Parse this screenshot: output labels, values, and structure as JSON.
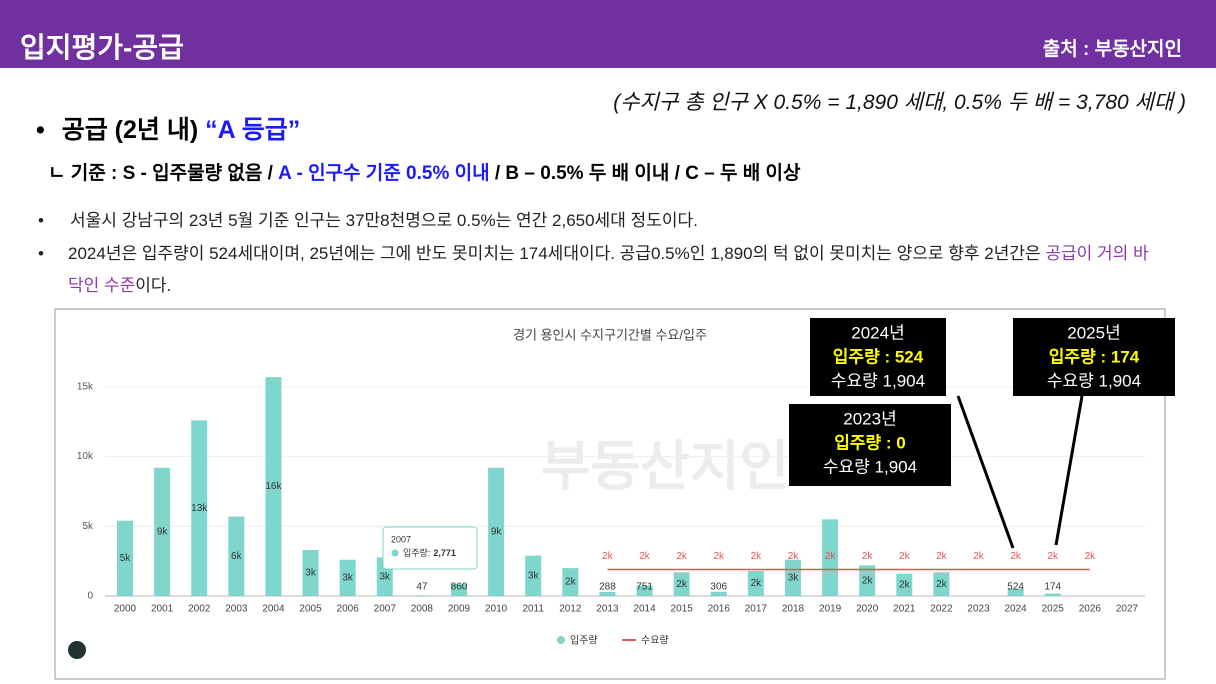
{
  "header": {
    "title": "입지평가-공급",
    "source": "출처 : 부동산지인"
  },
  "formula": "(수지구 총 인구 X 0.5% = 1,890 세대, 0.5% 두 배 = 3,780 세대 )",
  "heading": {
    "bullet": "•",
    "text": "공급 (2년 내)",
    "grade": "“A 등급”"
  },
  "criteria": {
    "prefix": "ㄴ",
    "part1": "기준 : S - 입주물량 없음 /",
    "part2": "A - 인구수 기준 0.5% 이내",
    "part3": "/ B – 0.5% 두 배 이내 / C – 두 배 이상"
  },
  "bullets": [
    {
      "text": "서울시 강남구의 23년 5월 기준 인구는 37만8천명으로 0.5%는 연간 2,650세대 정도이다."
    },
    {
      "text": "2024년은 입주량이 524세대이며, 25년에는 그에 반도 못미치는 174세대이다. 공급0.5%인 1,890의 턱 없이 못미치는 양으로 향후 2년간은",
      "highlight": "공급이 거의 바닥인 수준",
      "tail": "이다."
    }
  ],
  "chart_data": {
    "type": "bar",
    "title": "경기 용인시 수지구기간별 수요/입주",
    "watermark": "부동산지인",
    "categories": [
      "2000",
      "2001",
      "2002",
      "2003",
      "2004",
      "2005",
      "2006",
      "2007",
      "2008",
      "2009",
      "2010",
      "2011",
      "2012",
      "2013",
      "2014",
      "2015",
      "2016",
      "2017",
      "2018",
      "2019",
      "2020",
      "2021",
      "2022",
      "2023",
      "2024",
      "2025",
      "2026",
      "2027"
    ],
    "series": [
      {
        "name": "입주량",
        "color": "#7fd6cc",
        "values": [
          5400,
          9200,
          12600,
          5700,
          15700,
          3300,
          2600,
          2771,
          47,
          860,
          9200,
          2900,
          2000,
          288,
          751,
          1700,
          306,
          1800,
          2600,
          5500,
          2200,
          1600,
          1700,
          0,
          524,
          174,
          null,
          null
        ],
        "value_labels": [
          "5k",
          "9k",
          "13k",
          "6k",
          "16k",
          "3k",
          "3k",
          "3k",
          "47",
          "860",
          "9k",
          "3k",
          "2k",
          "288",
          "751",
          "2k",
          "306",
          "2k",
          "3k",
          null,
          "2k",
          "2k",
          "2k",
          null,
          "524",
          "174",
          null,
          null
        ]
      },
      {
        "name": "수요량",
        "type": "line",
        "color": "#e05555",
        "values": [
          null,
          null,
          null,
          null,
          null,
          null,
          null,
          null,
          null,
          null,
          null,
          null,
          null,
          1904,
          1904,
          1904,
          1904,
          1904,
          1904,
          1904,
          1904,
          1904,
          1904,
          1904,
          1904,
          1904,
          1904,
          null
        ],
        "value_labels": [
          null,
          null,
          null,
          null,
          null,
          null,
          null,
          null,
          null,
          null,
          null,
          null,
          null,
          "2k",
          "2k",
          "2k",
          "2k",
          "2k",
          "2k",
          "2k",
          "2k",
          "2k",
          "2k",
          "2k",
          "2k",
          "2k",
          "2k",
          null
        ]
      }
    ],
    "ylim": [
      0,
      17000
    ],
    "yticks": [
      0,
      {
        "value": 5000,
        "label": "5k"
      },
      {
        "value": 10000,
        "label": "10k"
      },
      {
        "value": 15000,
        "label": "15k"
      }
    ],
    "tooltip": {
      "year": "2007",
      "label": "입주량:",
      "value": "2,771"
    },
    "callouts": [
      {
        "year": "2024년",
        "supply": "입주량 : 524",
        "demand": "수요량 1,904"
      },
      {
        "year": "2025년",
        "supply": "입주량 : 174",
        "demand": "수요량 1,904"
      },
      {
        "year": "2023년",
        "supply": "입주량 : 0",
        "demand": "수요량 1,904"
      }
    ]
  }
}
